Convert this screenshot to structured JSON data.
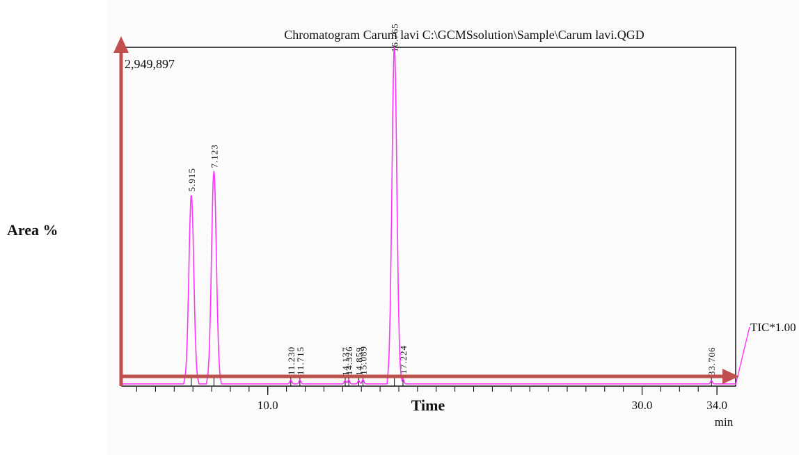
{
  "chart_data": {
    "type": "line",
    "title": "Chromatogram Carum lavi C:\\GCMSsolution\\Sample\\Carum lavi.QGD",
    "max_intensity_label": "2,949,897",
    "xlabel": "Time",
    "ylabel": "Area %",
    "x_unit": "min",
    "trace_label": "TIC*1.00",
    "xlim": [
      2.2,
      35.0
    ],
    "ylim": [
      0,
      100
    ],
    "x_ticks": [
      10.0,
      30.0,
      34.0
    ],
    "x_tick_labels": [
      "10.0",
      "30.0",
      "34.0"
    ],
    "grid": false,
    "series": [
      {
        "name": "TIC*1.00",
        "color": "#ff33ff"
      }
    ],
    "peaks": [
      {
        "rt": 5.915,
        "label": "5.915",
        "height": 56
      },
      {
        "rt": 7.123,
        "label": "7.123",
        "height": 63
      },
      {
        "rt": 11.23,
        "label": "11.230",
        "height": 1.2
      },
      {
        "rt": 11.715,
        "label": "11.715",
        "height": 1.2
      },
      {
        "rt": 14.137,
        "label": "14.137",
        "height": 1.0
      },
      {
        "rt": 14.326,
        "label": "14.326",
        "height": 1.2
      },
      {
        "rt": 14.859,
        "label": "14.859",
        "height": 1.0
      },
      {
        "rt": 15.089,
        "label": "15.089",
        "height": 1.3
      },
      {
        "rt": 16.765,
        "label": "16.765",
        "height": 100
      },
      {
        "rt": 17.224,
        "label": "17.224",
        "height": 1.5
      },
      {
        "rt": 33.706,
        "label": "33.706",
        "height": 1.0
      }
    ],
    "colors": {
      "axis_arrow": "#c0504d",
      "trace": "#ff33ff",
      "frame": "#000000"
    }
  }
}
